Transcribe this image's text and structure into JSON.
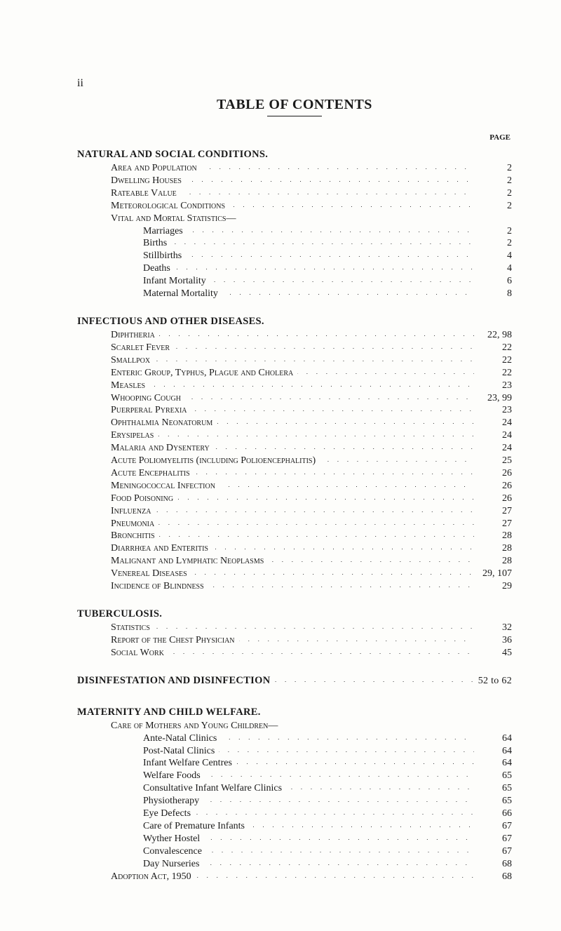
{
  "page_roman": "ii",
  "title": "TABLE OF CONTENTS",
  "page_label": "PAGE",
  "sections": [
    {
      "heading": "NATURAL AND SOCIAL CONDITIONS.",
      "items": [
        {
          "label": "Area and Population",
          "indent": 1,
          "smallcaps": true,
          "page": "2"
        },
        {
          "label": "Dwelling Houses",
          "indent": 1,
          "smallcaps": true,
          "page": "2"
        },
        {
          "label": "Rateable Value",
          "indent": 1,
          "smallcaps": true,
          "page": "2"
        },
        {
          "label": "Meteorological Conditions",
          "indent": 1,
          "smallcaps": true,
          "page": "2"
        },
        {
          "label": "Vital and Mortal Statistics—",
          "indent": 1,
          "smallcaps": true,
          "page": ""
        },
        {
          "label": "Marriages",
          "indent": 2,
          "smallcaps": false,
          "page": "2"
        },
        {
          "label": "Births",
          "indent": 2,
          "smallcaps": false,
          "page": "2"
        },
        {
          "label": "Stillbirths",
          "indent": 2,
          "smallcaps": false,
          "page": "4"
        },
        {
          "label": "Deaths",
          "indent": 2,
          "smallcaps": false,
          "page": "4"
        },
        {
          "label": "Infant Mortality",
          "indent": 2,
          "smallcaps": false,
          "page": "6"
        },
        {
          "label": "Maternal Mortality",
          "indent": 2,
          "smallcaps": false,
          "page": "8"
        }
      ]
    },
    {
      "heading": "INFECTIOUS AND OTHER DISEASES.",
      "items": [
        {
          "label": "Diphtheria",
          "indent": 1,
          "smallcaps": true,
          "page": "22, 98"
        },
        {
          "label": "Scarlet Fever",
          "indent": 1,
          "smallcaps": true,
          "page": "22"
        },
        {
          "label": "Smallpox",
          "indent": 1,
          "smallcaps": true,
          "page": "22"
        },
        {
          "label": "Enteric Group, Typhus, Plague and Cholera",
          "indent": 1,
          "smallcaps": true,
          "page": "22"
        },
        {
          "label": "Measles",
          "indent": 1,
          "smallcaps": true,
          "page": "23"
        },
        {
          "label": "Whooping Cough",
          "indent": 1,
          "smallcaps": true,
          "page": "23, 99"
        },
        {
          "label": "Puerperal Pyrexia",
          "indent": 1,
          "smallcaps": true,
          "page": "23"
        },
        {
          "label": "Ophthalmia Neonatorum",
          "indent": 1,
          "smallcaps": true,
          "page": "24"
        },
        {
          "label": "Erysipelas",
          "indent": 1,
          "smallcaps": true,
          "page": "24"
        },
        {
          "label": "Malaria and Dysentery",
          "indent": 1,
          "smallcaps": true,
          "page": "24"
        },
        {
          "label": "Acute Poliomyelitis (including Polioencephalitis)",
          "indent": 1,
          "smallcaps": true,
          "page": "25"
        },
        {
          "label": "Acute Encephalitis",
          "indent": 1,
          "smallcaps": true,
          "page": "26"
        },
        {
          "label": "Meningococcal Infection",
          "indent": 1,
          "smallcaps": true,
          "page": "26"
        },
        {
          "label": "Food Poisoning",
          "indent": 1,
          "smallcaps": true,
          "page": "26"
        },
        {
          "label": "Influenza",
          "indent": 1,
          "smallcaps": true,
          "page": "27"
        },
        {
          "label": "Pneumonia",
          "indent": 1,
          "smallcaps": true,
          "page": "27"
        },
        {
          "label": "Bronchitis",
          "indent": 1,
          "smallcaps": true,
          "page": "28"
        },
        {
          "label": "Diarrhœa and Enteritis",
          "indent": 1,
          "smallcaps": true,
          "page": "28"
        },
        {
          "label": "Malignant and Lymphatic Neoplasms",
          "indent": 1,
          "smallcaps": true,
          "page": "28"
        },
        {
          "label": "Venereal Diseases",
          "indent": 1,
          "smallcaps": true,
          "page": "29, 107"
        },
        {
          "label": "Incidence of Blindness",
          "indent": 1,
          "smallcaps": true,
          "page": "29"
        }
      ]
    },
    {
      "heading": "TUBERCULOSIS.",
      "items": [
        {
          "label": "Statistics",
          "indent": 1,
          "smallcaps": true,
          "page": "32"
        },
        {
          "label": "Report of the Chest Physician",
          "indent": 1,
          "smallcaps": true,
          "page": "36"
        },
        {
          "label": "Social Work",
          "indent": 1,
          "smallcaps": true,
          "page": "45"
        }
      ]
    }
  ],
  "disinfestation": {
    "heading": "DISINFESTATION AND DISINFECTION",
    "page": "52 to 62"
  },
  "maternity": {
    "heading": "MATERNITY AND CHILD WELFARE.",
    "subheading": "Care of Mothers and Young Children—",
    "items": [
      {
        "label": "Ante-Natal Clinics",
        "indent": 2,
        "page": "64"
      },
      {
        "label": "Post-Natal Clinics",
        "indent": 2,
        "page": "64"
      },
      {
        "label": "Infant Welfare Centres",
        "indent": 2,
        "page": "64"
      },
      {
        "label": "Welfare Foods",
        "indent": 2,
        "page": "65"
      },
      {
        "label": "Consultative Infant Welfare Clinics",
        "indent": 2,
        "page": "65"
      },
      {
        "label": "Physiotherapy",
        "indent": 2,
        "page": "65"
      },
      {
        "label": "Eye Defects",
        "indent": 2,
        "page": "66"
      },
      {
        "label": "Care of Premature Infants",
        "indent": 2,
        "page": "67"
      },
      {
        "label": "Wyther Hostel",
        "indent": 2,
        "page": "67"
      },
      {
        "label": "Convalescence",
        "indent": 2,
        "page": "67"
      },
      {
        "label": "Day Nurseries",
        "indent": 2,
        "page": "68"
      }
    ],
    "adoption": {
      "label": "Adoption Act, 1950",
      "page": "68"
    }
  }
}
